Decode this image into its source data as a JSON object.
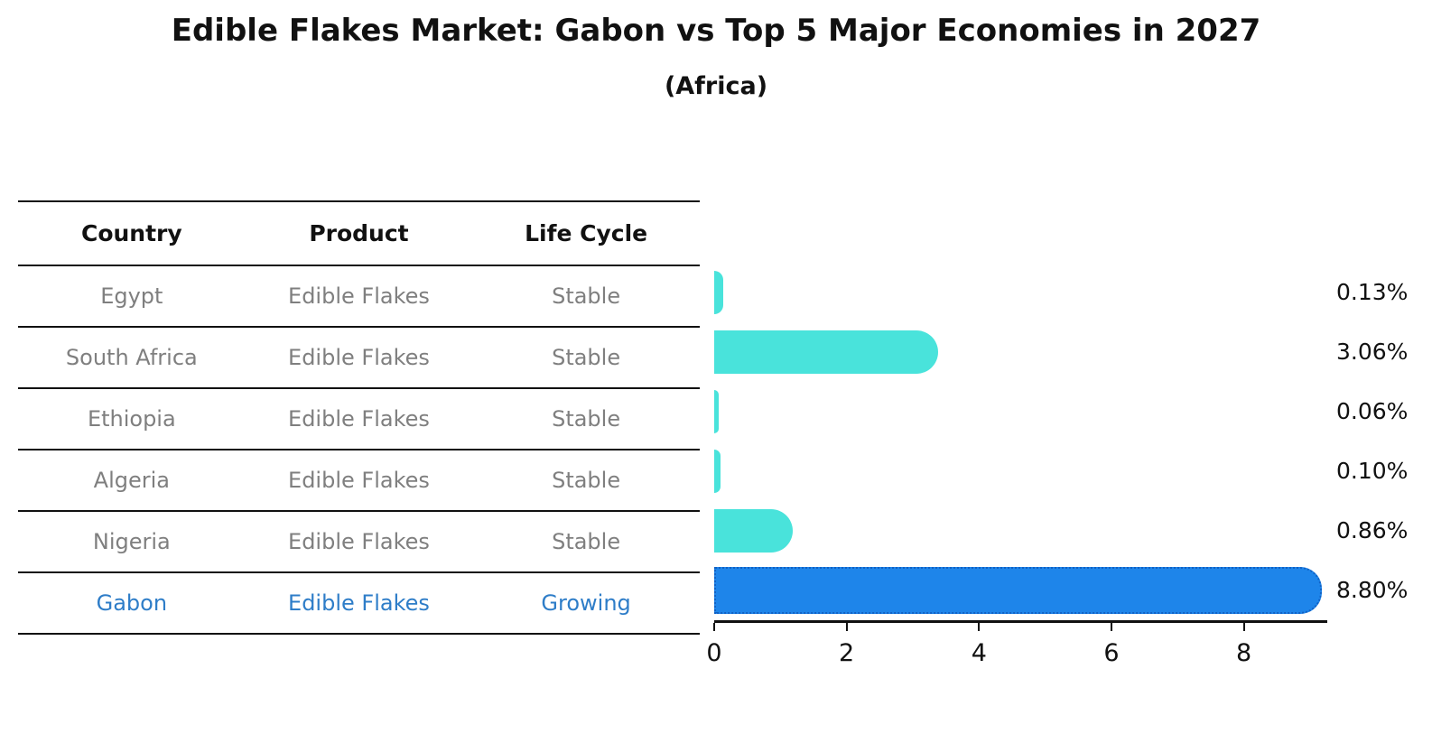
{
  "title": "Edible Flakes Market: Gabon vs Top 5 Major Economies in 2027",
  "subtitle": "(Africa)",
  "table": {
    "headers": [
      "Country",
      "Product",
      "Life Cycle"
    ],
    "rows": [
      {
        "country": "Egypt",
        "product": "Edible Flakes",
        "life_cycle": "Stable",
        "highlight": false
      },
      {
        "country": "South Africa",
        "product": "Edible Flakes",
        "life_cycle": "Stable",
        "highlight": false
      },
      {
        "country": "Ethiopia",
        "product": "Edible Flakes",
        "life_cycle": "Stable",
        "highlight": false
      },
      {
        "country": "Algeria",
        "product": "Edible Flakes",
        "life_cycle": "Stable",
        "highlight": false
      },
      {
        "country": "Nigeria",
        "product": "Edible Flakes",
        "life_cycle": "Stable",
        "highlight": false
      },
      {
        "country": "Gabon",
        "product": "Edible Flakes",
        "life_cycle": "Growing",
        "highlight": true
      }
    ]
  },
  "chart_data": {
    "type": "bar",
    "orientation": "horizontal",
    "title": "Edible Flakes Market: Gabon vs Top 5 Major Economies in 2027",
    "subtitle": "(Africa)",
    "categories": [
      "Egypt",
      "South Africa",
      "Ethiopia",
      "Algeria",
      "Nigeria",
      "Gabon"
    ],
    "values": [
      0.13,
      3.06,
      0.06,
      0.1,
      0.86,
      8.8
    ],
    "value_labels": [
      "0.13%",
      "3.06%",
      "0.06%",
      "0.10%",
      "0.86%",
      "8.80%"
    ],
    "xlabel": "",
    "ylabel": "",
    "xlim": [
      0,
      9.26
    ],
    "xticks": [
      0,
      2,
      4,
      6,
      8
    ],
    "xtick_labels": [
      "0",
      "2",
      "4",
      "6",
      "8"
    ],
    "grid": false,
    "legend": false,
    "bar_colors": [
      "#49e3db",
      "#49e3db",
      "#49e3db",
      "#49e3db",
      "#49e3db",
      "#1e85ea"
    ],
    "highlight_index": 5
  },
  "colors": {
    "base_bar": "#49e3db",
    "highlight_bar": "#1e85ea",
    "highlight_border": "#1161c4",
    "highlight_text": "#2e7dc8",
    "text_dark": "#111111",
    "text_gray": "#7f7f7f",
    "axis": "#111111"
  }
}
